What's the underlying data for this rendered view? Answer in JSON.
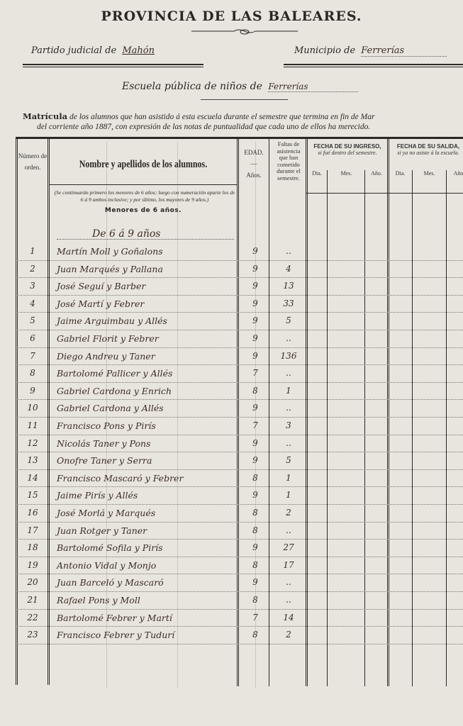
{
  "header": {
    "title": "PROVINCIA DE LAS BALEARES.",
    "partido_label": "Partido judicial de",
    "partido_value": "Mahón",
    "municipio_label": "Municipio de",
    "municipio_value": "Ferrerías",
    "escuela_label": "Escuela pública de niños de",
    "escuela_value": "Ferrerías",
    "matricula_word": "Matrícula",
    "matricula_line1": "de los alumnos que han asistido á esta escuela durante el semestre que termina en fin de Mar",
    "matricula_line2": "del corriente año 1887, con expresión de las notas de puntualidad que cada uno de ellos ha merecido."
  },
  "table": {
    "col_numero": "Número de orden.",
    "col_nombre": "Nombre y apellidos de los alumnos.",
    "col_edad": "EDAD.",
    "col_edad_dash": "—",
    "col_edad_sub": "Años.",
    "col_faltas": "Faltas de asistencia que han cometido durante el semestre.",
    "ingreso_title": "FECHA DE SU INGRESO,",
    "ingreso_sub": "si fué dentro del semestre.",
    "salida_title": "FECHA DE SU SALIDA,",
    "salida_sub": "si ya no asiste á la escuela.",
    "dia": "Dia.",
    "mes": "Mes.",
    "ano": "Año.",
    "note": "(Se continuarán primero los menores de 6 años; luego con numeración aparte los de 6 á 9 ambos inclusive; y por último, los mayores de 9 años.)",
    "menores": "Menores de 6 años.",
    "section_label": "De 6 á 9 años",
    "rows": [
      {
        "num": "1",
        "name": "Martín Moll y Goñalons",
        "age": "9",
        "absences": ".."
      },
      {
        "num": "2",
        "name": "Juan Marqués y Pallana",
        "age": "9",
        "absences": "4"
      },
      {
        "num": "3",
        "name": "José Seguí y Barber",
        "age": "9",
        "absences": "13"
      },
      {
        "num": "4",
        "name": "José Martí y Febrer",
        "age": "9",
        "absences": "33"
      },
      {
        "num": "5",
        "name": "Jaime Arguimbau y Allés",
        "age": "9",
        "absences": "5"
      },
      {
        "num": "6",
        "name": "Gabriel Florit y Febrer",
        "age": "9",
        "absences": ".."
      },
      {
        "num": "7",
        "name": "Diego Andreu y Taner",
        "age": "9",
        "absences": "136"
      },
      {
        "num": "8",
        "name": "Bartolomé Pallicer y Allés",
        "age": "7",
        "absences": ".."
      },
      {
        "num": "9",
        "name": "Gabriel Cardona y Enrich",
        "age": "8",
        "absences": "1"
      },
      {
        "num": "10",
        "name": "Gabriel Cardona y Allés",
        "age": "9",
        "absences": ".."
      },
      {
        "num": "11",
        "name": "Francisco Pons y Pirís",
        "age": "7",
        "absences": "3"
      },
      {
        "num": "12",
        "name": "Nicolás Taner y Pons",
        "age": "9",
        "absences": ".."
      },
      {
        "num": "13",
        "name": "Onofre Taner y Serra",
        "age": "9",
        "absences": "5"
      },
      {
        "num": "14",
        "name": "Francisco Mascaró y Febrer",
        "age": "8",
        "absences": "1"
      },
      {
        "num": "15",
        "name": "Jaime Pirís y Allés",
        "age": "9",
        "absences": "1"
      },
      {
        "num": "16",
        "name": "José Morlá y Marqués",
        "age": "8",
        "absences": "2"
      },
      {
        "num": "17",
        "name": "Juan Rotger y Taner",
        "age": "8",
        "absences": ".."
      },
      {
        "num": "18",
        "name": "Bartolomé Sofila y Pirís",
        "age": "9",
        "absences": "27"
      },
      {
        "num": "19",
        "name": "Antonio Vidal y Monjo",
        "age": "8",
        "absences": "17"
      },
      {
        "num": "20",
        "name": "Juan Barceló y Mascaró",
        "age": "9",
        "absences": ".."
      },
      {
        "num": "21",
        "name": "Rafael Pons y Moll",
        "age": "8",
        "absences": ".."
      },
      {
        "num": "22",
        "name": "Bartolomé Febrer y Martí",
        "age": "7",
        "absences": "14"
      },
      {
        "num": "23",
        "name": "Francisco Febrer y Tudurí",
        "age": "8",
        "absences": "2"
      }
    ]
  }
}
